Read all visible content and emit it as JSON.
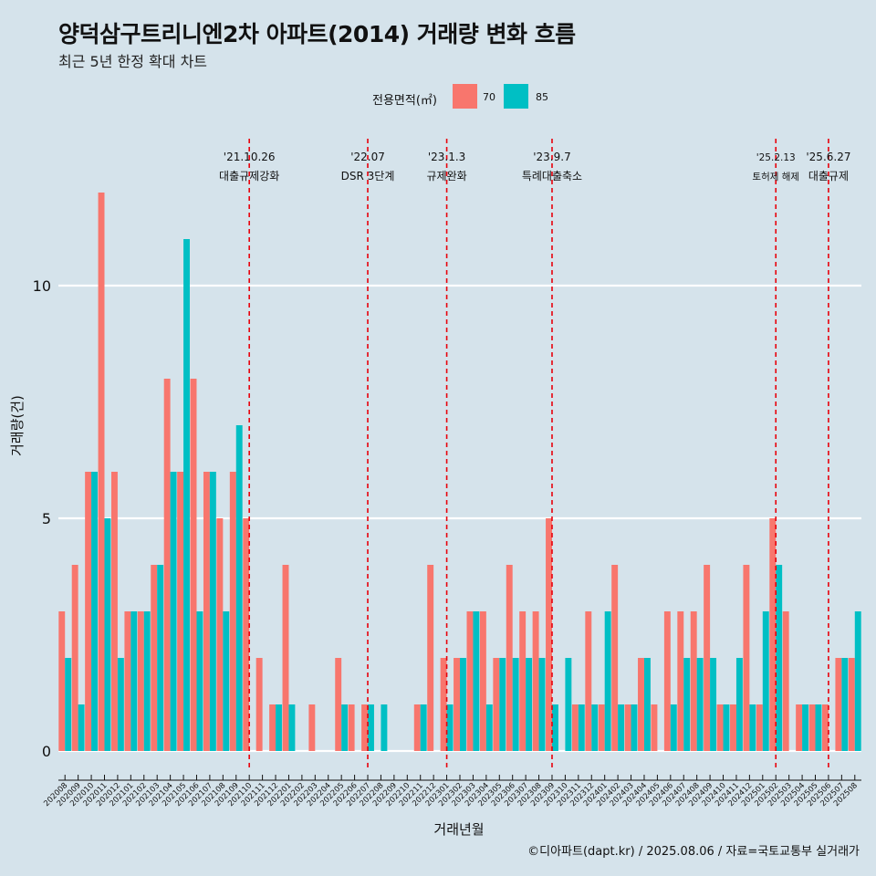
{
  "chart_data": {
    "type": "bar",
    "title": "양덕삼구트리니엔2차 아파트(2014) 거래량 변화 흐름",
    "subtitle": "최근 5년 한정 확대 차트",
    "xlabel": "거래년월",
    "ylabel": "거래량(건)",
    "ylim": [
      0,
      12
    ],
    "yticks": [
      0,
      5,
      10
    ],
    "grid": "horizontal",
    "legend": {
      "title": "전용면적(㎡)",
      "placement": "top",
      "entries": [
        {
          "label": "70",
          "color": "#f8766d"
        },
        {
          "label": "85",
          "color": "#00bfc4"
        }
      ]
    },
    "categories": [
      "202008",
      "202009",
      "202010",
      "202011",
      "202012",
      "202101",
      "202102",
      "202103",
      "202104",
      "202105",
      "202106",
      "202107",
      "202108",
      "202109",
      "202110",
      "202111",
      "202112",
      "202201",
      "202202",
      "202203",
      "202204",
      "202205",
      "202206",
      "202207",
      "202208",
      "202209",
      "202210",
      "202211",
      "202212",
      "202301",
      "202302",
      "202303",
      "202304",
      "202305",
      "202306",
      "202307",
      "202308",
      "202309",
      "202310",
      "202311",
      "202312",
      "202401",
      "202402",
      "202403",
      "202404",
      "202405",
      "202406",
      "202407",
      "202408",
      "202409",
      "202410",
      "202411",
      "202412",
      "202501",
      "202502",
      "202503",
      "202504",
      "202505",
      "202506",
      "202507",
      "202508"
    ],
    "series": [
      {
        "name": "70",
        "color": "#f8766d",
        "values": [
          3,
          4,
          6,
          12,
          6,
          3,
          3,
          4,
          8,
          6,
          8,
          6,
          5,
          6,
          5,
          2,
          1,
          4,
          0,
          1,
          0,
          2,
          1,
          1,
          0,
          0,
          0,
          1,
          4,
          2,
          2,
          3,
          3,
          2,
          4,
          3,
          3,
          5,
          0,
          1,
          3,
          1,
          4,
          1,
          2,
          1,
          3,
          3,
          3,
          4,
          1,
          1,
          4,
          1,
          5,
          3,
          1,
          1,
          1,
          2,
          2
        ]
      },
      {
        "name": "85",
        "color": "#00bfc4",
        "values": [
          2,
          1,
          6,
          5,
          2,
          3,
          3,
          4,
          6,
          11,
          3,
          6,
          3,
          7,
          0,
          0,
          1,
          1,
          0,
          0,
          0,
          1,
          0,
          1,
          1,
          0,
          0,
          1,
          0,
          1,
          2,
          3,
          1,
          2,
          2,
          2,
          2,
          1,
          2,
          1,
          1,
          3,
          1,
          1,
          2,
          0,
          1,
          2,
          2,
          2,
          1,
          2,
          1,
          3,
          4,
          0,
          1,
          1,
          0,
          2,
          3
        ]
      }
    ],
    "events": [
      {
        "line1": "'21.10.26",
        "line2": "대출규제강화",
        "category": "202110"
      },
      {
        "line1": "'22.07",
        "line2": "DSR 3단계",
        "category": "202207"
      },
      {
        "line1": "'23.1.3",
        "line2": "규제완화",
        "category": "202301"
      },
      {
        "line1": "'23.9.7",
        "line2": "특례대출축소",
        "category": "202309"
      },
      {
        "line1": "'25.2.13",
        "line2": "토허제 해제",
        "category": "202502"
      },
      {
        "line1": "'25.6.27",
        "line2": "대출규제",
        "category": "202506"
      }
    ]
  },
  "caption": "©디아파트(dapt.kr) / 2025.08.06 / 자료=국토교통부 실거래가"
}
